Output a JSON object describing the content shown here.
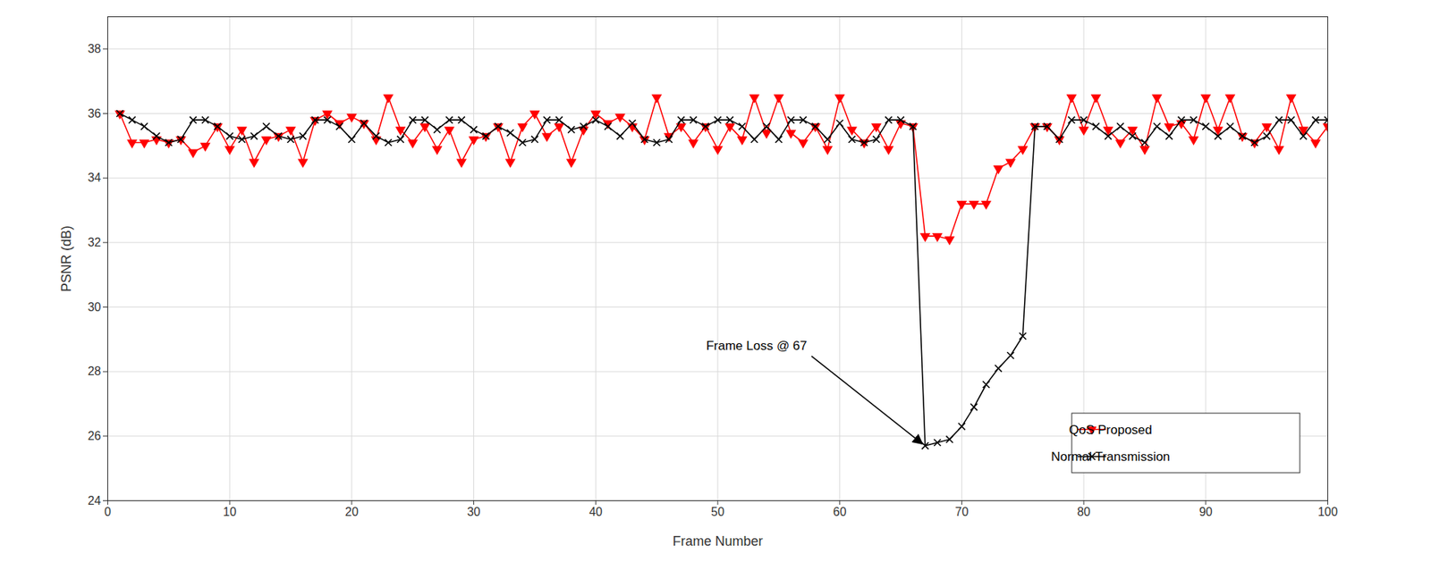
{
  "chart_data": {
    "type": "line",
    "x_label": "Frame Number",
    "y_label": "PSNR (dB)",
    "xlim": [
      0,
      100
    ],
    "xticks": [
      0,
      10,
      20,
      30,
      40,
      50,
      60,
      70,
      80,
      90,
      100
    ],
    "ylim": [
      24,
      39
    ],
    "yticks": [
      24,
      26,
      28,
      30,
      32,
      34,
      36,
      38
    ],
    "grid": true,
    "legend": "lower right",
    "x": [
      1,
      2,
      3,
      4,
      5,
      6,
      7,
      8,
      9,
      10,
      11,
      12,
      13,
      14,
      15,
      16,
      17,
      18,
      19,
      20,
      21,
      22,
      23,
      24,
      25,
      26,
      27,
      28,
      29,
      30,
      31,
      32,
      33,
      34,
      35,
      36,
      37,
      38,
      39,
      40,
      41,
      42,
      43,
      44,
      45,
      46,
      47,
      48,
      49,
      50,
      51,
      52,
      53,
      54,
      55,
      56,
      57,
      58,
      59,
      60,
      61,
      62,
      63,
      64,
      65,
      66,
      67,
      68,
      69,
      70,
      71,
      72,
      73,
      74,
      75,
      76,
      77,
      78,
      79,
      80,
      81,
      82,
      83,
      84,
      85,
      86,
      87,
      88,
      89,
      90,
      91,
      92,
      93,
      94,
      95,
      96,
      97,
      98,
      99,
      100
    ],
    "series": [
      {
        "name": "QoS Proposed",
        "color": "#ff0000",
        "marker": "triangle-down",
        "line_style": "solid",
        "values": [
          36.0,
          35.1,
          35.1,
          35.2,
          35.1,
          35.2,
          34.8,
          35.0,
          35.6,
          34.9,
          35.5,
          34.5,
          35.2,
          35.3,
          35.5,
          34.5,
          35.8,
          36.0,
          35.7,
          35.9,
          35.7,
          35.2,
          36.5,
          35.5,
          35.1,
          35.6,
          34.9,
          35.5,
          34.5,
          35.2,
          35.3,
          35.6,
          34.5,
          35.6,
          36.0,
          35.3,
          35.6,
          34.5,
          35.5,
          36.0,
          35.7,
          35.9,
          35.6,
          35.2,
          36.5,
          35.3,
          35.6,
          35.1,
          35.6,
          34.9,
          35.6,
          35.2,
          36.5,
          35.4,
          36.5,
          35.4,
          35.1,
          35.6,
          34.9,
          36.5,
          35.5,
          35.1,
          35.6,
          34.9,
          35.7,
          35.6,
          32.2,
          32.2,
          32.1,
          33.2,
          33.2,
          33.2,
          34.3,
          34.5,
          34.9,
          35.6,
          35.6,
          35.2,
          36.5,
          35.5,
          36.5,
          35.5,
          35.1,
          35.5,
          34.9,
          36.5,
          35.6,
          35.7,
          35.2,
          36.5,
          35.5,
          36.5,
          35.3,
          35.1,
          35.6,
          34.9,
          36.5,
          35.5,
          35.1,
          35.6
        ]
      },
      {
        "name": "Normal Transmission",
        "color": "#000000",
        "marker": "x",
        "line_style": "solid",
        "values": [
          36.0,
          35.8,
          35.6,
          35.3,
          35.1,
          35.2,
          35.8,
          35.8,
          35.6,
          35.3,
          35.2,
          35.3,
          35.6,
          35.3,
          35.2,
          35.3,
          35.8,
          35.8,
          35.6,
          35.2,
          35.7,
          35.3,
          35.1,
          35.2,
          35.8,
          35.8,
          35.5,
          35.8,
          35.8,
          35.5,
          35.3,
          35.6,
          35.4,
          35.1,
          35.2,
          35.8,
          35.8,
          35.5,
          35.6,
          35.8,
          35.6,
          35.3,
          35.7,
          35.2,
          35.1,
          35.2,
          35.8,
          35.8,
          35.6,
          35.8,
          35.8,
          35.6,
          35.2,
          35.6,
          35.2,
          35.8,
          35.8,
          35.6,
          35.2,
          35.7,
          35.2,
          35.1,
          35.2,
          35.8,
          35.8,
          35.6,
          25.7,
          25.8,
          25.9,
          26.3,
          26.9,
          27.6,
          28.1,
          28.5,
          29.1,
          35.6,
          35.6,
          35.2,
          35.8,
          35.8,
          35.6,
          35.3,
          35.6,
          35.3,
          35.1,
          35.6,
          35.3,
          35.8,
          35.8,
          35.6,
          35.3,
          35.6,
          35.3,
          35.1,
          35.3,
          35.8,
          35.8,
          35.3,
          35.8,
          35.8
        ]
      }
    ],
    "annotations": [
      {
        "text": "Frame Loss @ 67",
        "x": 67,
        "y": 25.7
      }
    ]
  }
}
